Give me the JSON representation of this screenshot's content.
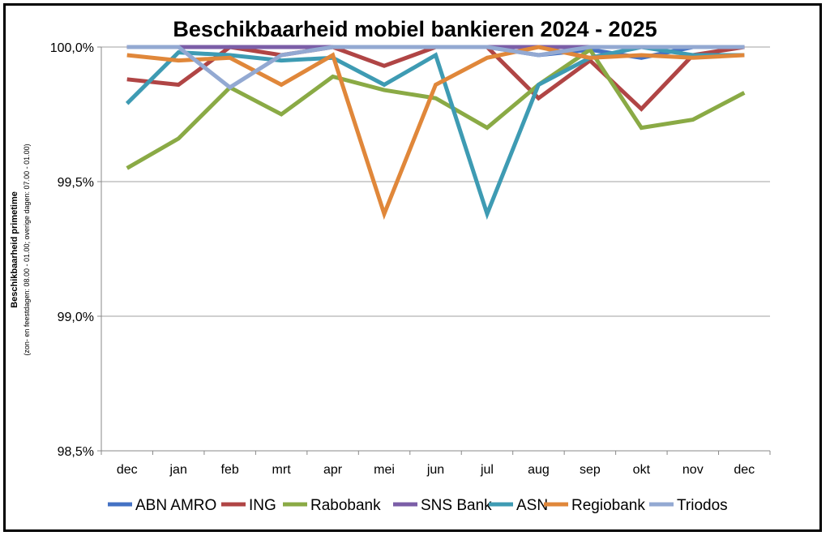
{
  "chart_data": {
    "type": "line",
    "title": "Beschikbaarheid mobiel bankieren 2024 - 2025",
    "ylabel": "Beschikbaarheid primetime",
    "ylabel_sub": "(zon- en feestdagen: 08.00 - 01.00; overige dagen: 07.00 - 01.00)",
    "xlabel": "",
    "categories": [
      "dec",
      "jan",
      "feb",
      "mrt",
      "apr",
      "mei",
      "jun",
      "jul",
      "aug",
      "sep",
      "okt",
      "nov",
      "dec"
    ],
    "ylim": [
      98.5,
      100.0
    ],
    "yticks": [
      98.5,
      99.0,
      99.5,
      100.0
    ],
    "ytick_labels": [
      "98,5%",
      "99,0%",
      "99,5%",
      "100,0%"
    ],
    "grid": true,
    "legend_placement": "bottom",
    "series": [
      {
        "name": "ABN AMRO",
        "color": "#4472C4",
        "values": [
          100,
          100,
          100,
          100,
          100,
          100,
          100,
          100,
          99.97,
          99.99,
          99.96,
          100,
          100
        ]
      },
      {
        "name": "ING",
        "color": "#B04545",
        "values": [
          99.88,
          99.86,
          100,
          99.97,
          100,
          99.93,
          100,
          100,
          99.81,
          99.95,
          99.77,
          99.97,
          100
        ]
      },
      {
        "name": "Rabobank",
        "color": "#8AAA45",
        "values": [
          99.55,
          99.66,
          99.85,
          99.75,
          99.89,
          99.84,
          99.81,
          99.7,
          99.86,
          99.99,
          99.7,
          99.73,
          99.83
        ]
      },
      {
        "name": "SNS Bank",
        "color": "#7B5EA7",
        "values": [
          100,
          100,
          100,
          100,
          100,
          100,
          100,
          100,
          100,
          100,
          100,
          100,
          100
        ]
      },
      {
        "name": "ASN",
        "color": "#3E9BB3",
        "values": [
          99.79,
          99.98,
          99.97,
          99.95,
          99.96,
          99.86,
          99.97,
          99.38,
          99.86,
          99.96,
          100,
          99.97,
          99.97
        ]
      },
      {
        "name": "Regiobank",
        "color": "#E0873A",
        "values": [
          99.97,
          99.95,
          99.96,
          99.86,
          99.97,
          99.38,
          99.86,
          99.96,
          100,
          99.96,
          99.97,
          99.96,
          99.97
        ]
      },
      {
        "name": "Triodos",
        "color": "#93A9D2",
        "values": [
          100,
          100,
          99.85,
          99.97,
          100,
          100,
          100,
          100,
          99.97,
          100,
          100,
          100,
          100
        ]
      }
    ]
  }
}
